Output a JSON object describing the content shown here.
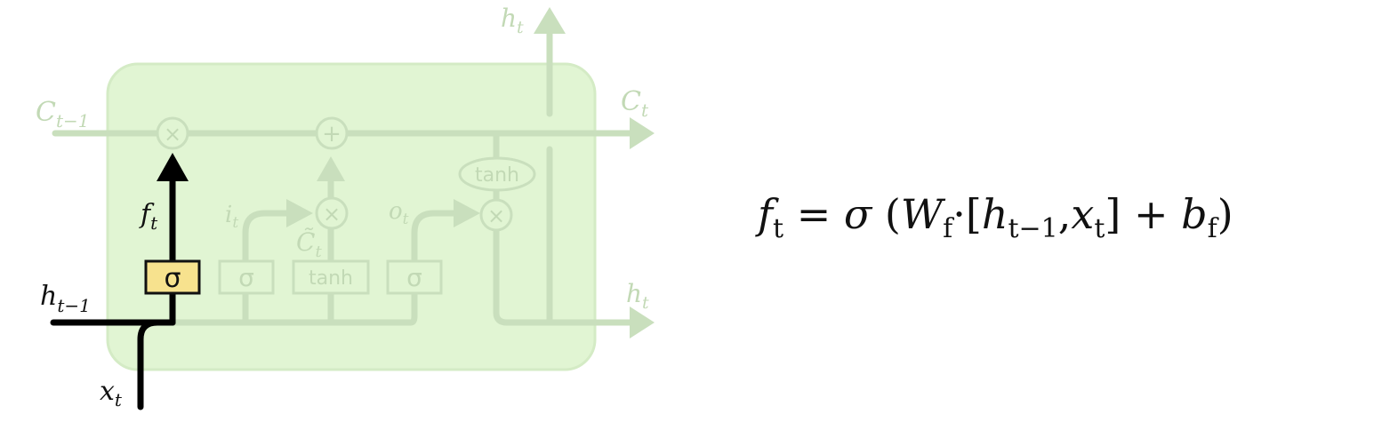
{
  "diagram": {
    "labels": {
      "c_prev": {
        "base": "C",
        "sub": "t−1"
      },
      "c_out": {
        "base": "C",
        "sub": "t"
      },
      "h_top": {
        "base": "h",
        "sub": "t"
      },
      "h_right": {
        "base": "h",
        "sub": "t"
      },
      "h_prev": {
        "base": "h",
        "sub": "t−1"
      },
      "x_in": {
        "base": "x",
        "sub": "t"
      },
      "f_gate": {
        "base": "f",
        "sub": "t"
      },
      "i_gate": {
        "base": "i",
        "sub": "t"
      },
      "o_gate": {
        "base": "o",
        "sub": "t"
      },
      "c_tilde": {
        "base": "C̃",
        "sub": "t"
      }
    },
    "ops": {
      "multiply": "×",
      "add": "+"
    },
    "layers": {
      "sigma": "σ",
      "tanh": "tanh"
    },
    "colors": {
      "cell_fill": "#e1f5d3",
      "cell_stroke": "#d4ebc5",
      "faded": "#c9dfbd",
      "highlight": "#000000",
      "sigma_box": "#f7e28e"
    }
  },
  "equation": {
    "lhs": "f",
    "lhs_sub": "t",
    "equals": "=",
    "sigma": "σ",
    "open_paren": "(",
    "w": "W",
    "w_sub": "f",
    "dot": "·",
    "open_bracket": "[",
    "h": "h",
    "h_sub": "t−1",
    "comma": ",",
    "x": "x",
    "x_sub": "t",
    "close_bracket": "]",
    "plus": "+",
    "b": "b",
    "b_sub": "f",
    "close_paren": ")"
  }
}
